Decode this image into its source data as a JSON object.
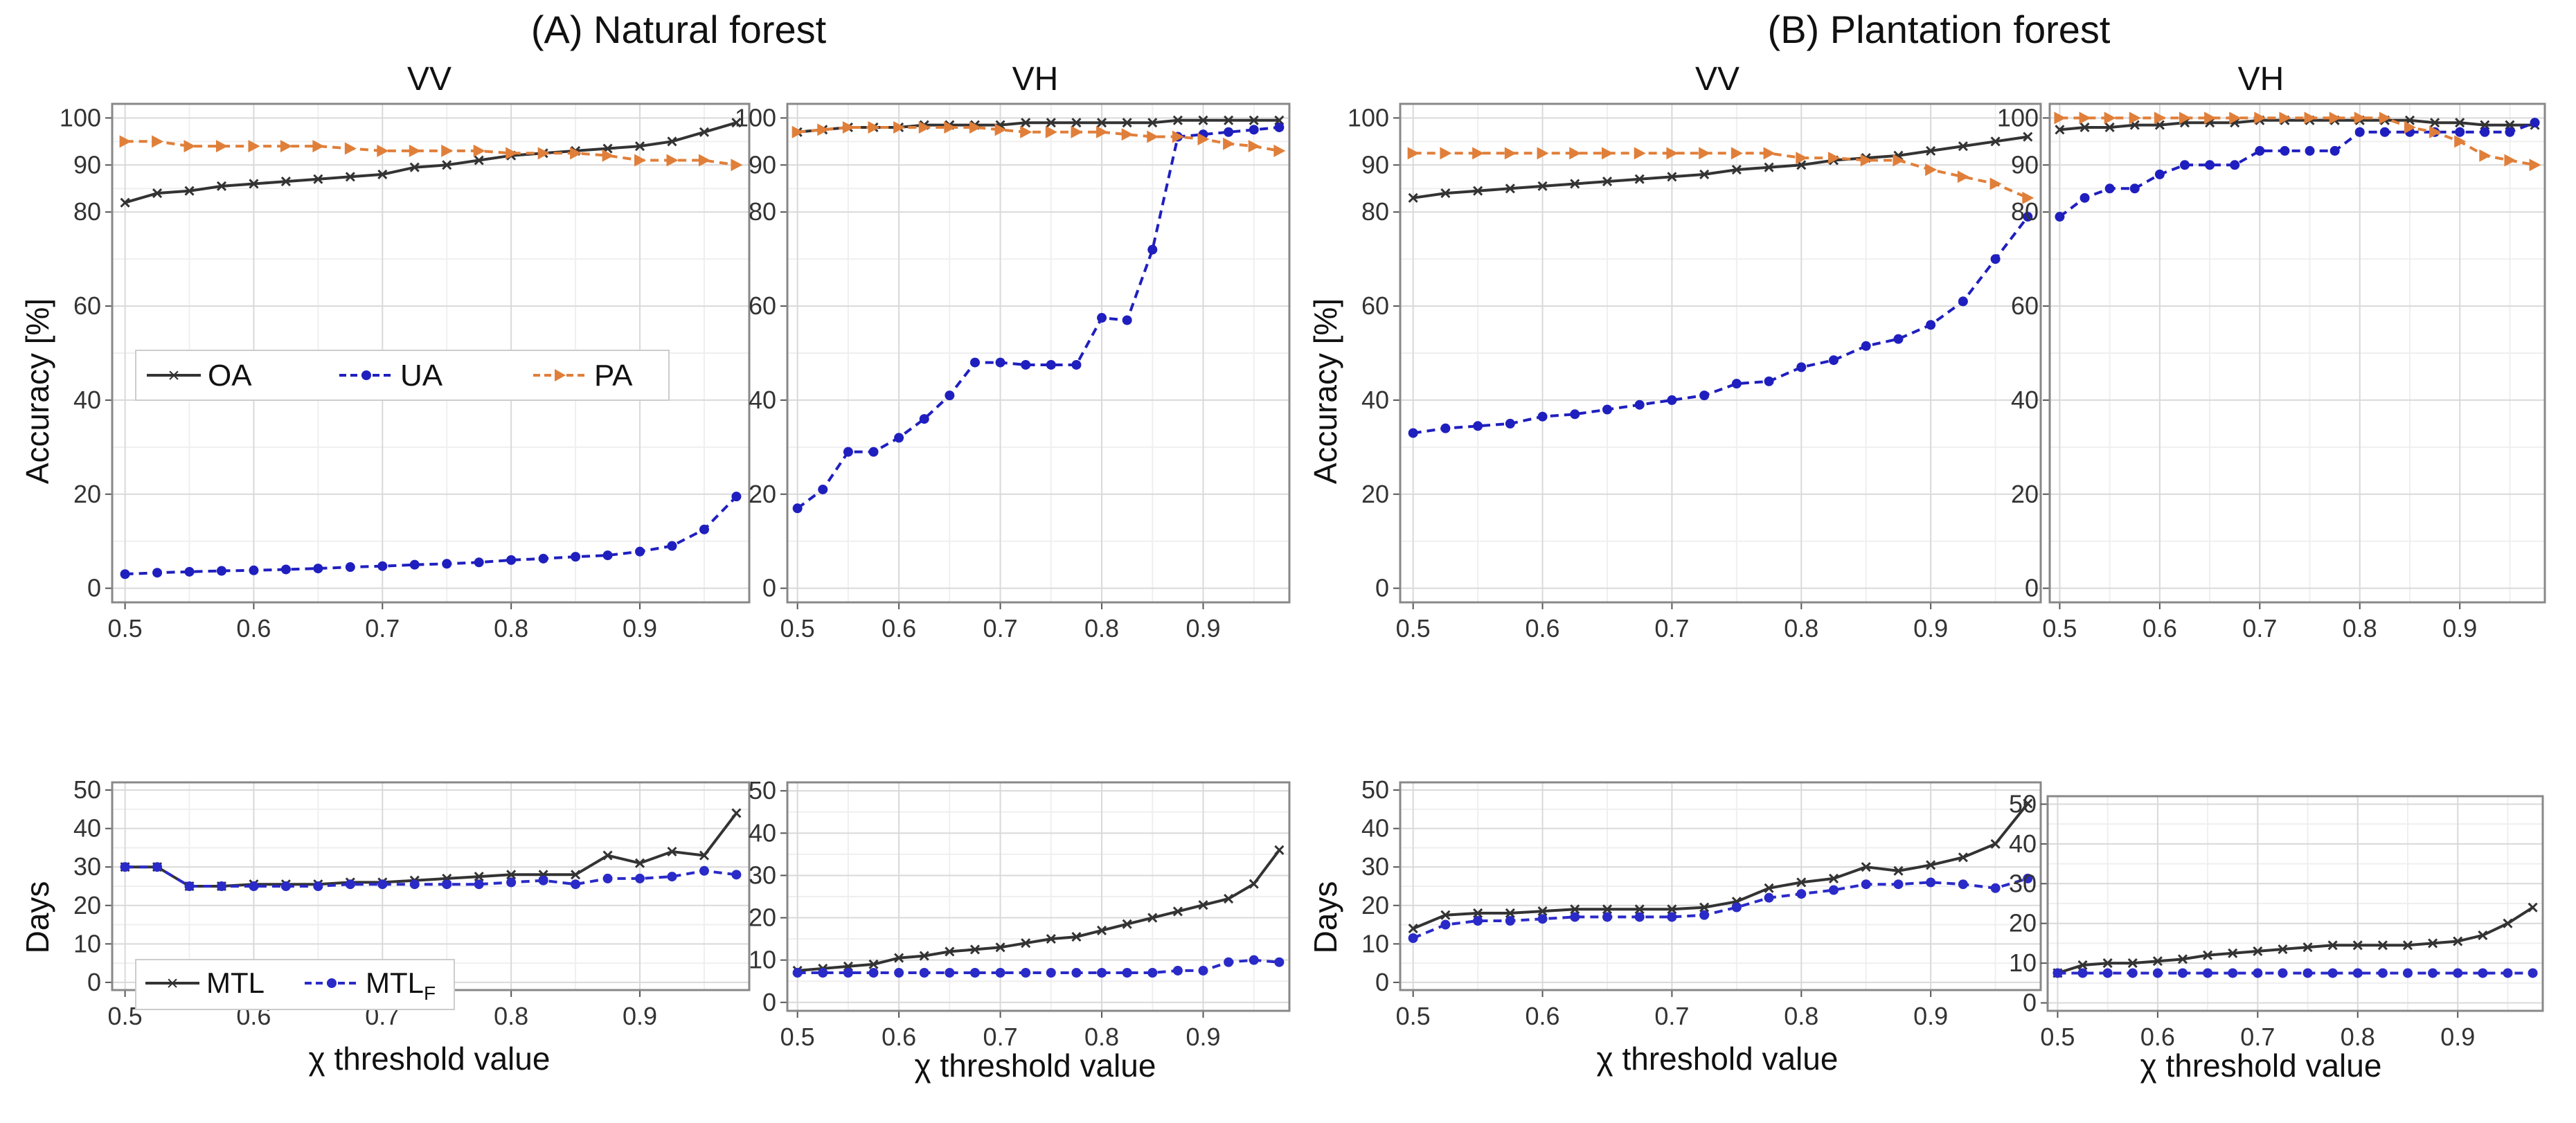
{
  "figure": {
    "group_a_title": "(A) Natural forest",
    "group_b_title": "(B) Plantation forest",
    "accuracy_ylabel": "Accuracy [%]",
    "days_ylabel": "Days",
    "xlabel": "χ threshold value",
    "legend_top": [
      "OA",
      "UA",
      "PA"
    ],
    "legend_bottom": [
      "MTL",
      "MTL",
      "F"
    ]
  },
  "colors": {
    "OA": "#333333",
    "UA": "#1f1fbf",
    "PA": "#e07f3a",
    "MTL": "#333333",
    "MTLF": "#2a2ac8",
    "grid_major": "#d9d9d9",
    "grid_minor": "#efefef",
    "frame": "#888888"
  },
  "chart_data": [
    {
      "id": "A_VV_acc",
      "type": "line",
      "title": "VV",
      "xlabel": "",
      "ylabel": "Accuracy [%]",
      "xlim": [
        0.49,
        0.985
      ],
      "ylim": [
        -3,
        103
      ],
      "x_ticks": [
        0.5,
        0.6,
        0.7,
        0.8,
        0.9
      ],
      "y_ticks": [
        0,
        20,
        40,
        60,
        80,
        90,
        100
      ],
      "legend": "inside-lower-left",
      "x": [
        0.5,
        0.525,
        0.55,
        0.575,
        0.6,
        0.625,
        0.65,
        0.675,
        0.7,
        0.725,
        0.75,
        0.775,
        0.8,
        0.825,
        0.85,
        0.875,
        0.9,
        0.925,
        0.95,
        0.975
      ],
      "series": [
        {
          "name": "OA",
          "values": [
            82,
            84,
            84.5,
            85.5,
            86,
            86.5,
            87,
            87.5,
            88,
            89.5,
            90,
            91,
            92,
            92.5,
            93,
            93.5,
            94,
            95,
            97,
            99
          ]
        },
        {
          "name": "UA",
          "values": [
            3,
            3.3,
            3.5,
            3.7,
            3.8,
            4,
            4.2,
            4.5,
            4.7,
            5,
            5.2,
            5.5,
            6,
            6.3,
            6.7,
            7,
            7.8,
            9,
            12.5,
            19.5
          ]
        },
        {
          "name": "PA",
          "values": [
            95,
            95,
            94,
            94,
            94,
            94,
            94,
            93.5,
            93,
            93,
            93,
            93,
            92.5,
            92.5,
            92.5,
            92,
            91,
            91,
            91,
            90
          ]
        }
      ]
    },
    {
      "id": "A_VH_acc",
      "type": "line",
      "title": "VH",
      "xlabel": "",
      "ylabel": "",
      "xlim": [
        0.49,
        0.985
      ],
      "ylim": [
        -3,
        103
      ],
      "x_ticks": [
        0.5,
        0.6,
        0.7,
        0.8,
        0.9
      ],
      "y_ticks": [
        0,
        20,
        40,
        60,
        80,
        90,
        100
      ],
      "x": [
        0.5,
        0.525,
        0.55,
        0.575,
        0.6,
        0.625,
        0.65,
        0.675,
        0.7,
        0.725,
        0.75,
        0.775,
        0.8,
        0.825,
        0.85,
        0.875,
        0.9,
        0.925,
        0.95,
        0.975
      ],
      "series": [
        {
          "name": "OA",
          "values": [
            97,
            97.5,
            98,
            98,
            98,
            98.5,
            98.5,
            98.5,
            98.5,
            99,
            99,
            99,
            99,
            99,
            99,
            99.5,
            99.5,
            99.5,
            99.5,
            99.5
          ]
        },
        {
          "name": "UA",
          "values": [
            17,
            21,
            29,
            29,
            32,
            36,
            41,
            48,
            48,
            47.5,
            47.5,
            47.5,
            57.5,
            57,
            72,
            96,
            96.5,
            97,
            97.5,
            98
          ]
        },
        {
          "name": "PA",
          "values": [
            97,
            97.5,
            98,
            98,
            98,
            98,
            98,
            98,
            97.5,
            97,
            97,
            97,
            97,
            96.5,
            96,
            96,
            95.5,
            94.5,
            94,
            93
          ]
        }
      ]
    },
    {
      "id": "B_VV_acc",
      "type": "line",
      "title": "VV",
      "xlabel": "",
      "ylabel": "Accuracy [%]",
      "xlim": [
        0.49,
        0.985
      ],
      "ylim": [
        -3,
        103
      ],
      "x_ticks": [
        0.5,
        0.6,
        0.7,
        0.8,
        0.9
      ],
      "y_ticks": [
        0,
        20,
        40,
        60,
        80,
        90,
        100
      ],
      "x": [
        0.5,
        0.525,
        0.55,
        0.575,
        0.6,
        0.625,
        0.65,
        0.675,
        0.7,
        0.725,
        0.75,
        0.775,
        0.8,
        0.825,
        0.85,
        0.875,
        0.9,
        0.925,
        0.95,
        0.975
      ],
      "series": [
        {
          "name": "OA",
          "values": [
            83,
            84,
            84.5,
            85,
            85.5,
            86,
            86.5,
            87,
            87.5,
            88,
            89,
            89.5,
            90,
            91,
            91.5,
            92,
            93,
            94,
            95,
            96
          ]
        },
        {
          "name": "UA",
          "values": [
            33,
            34,
            34.5,
            35,
            36.5,
            37,
            38,
            39,
            40,
            41,
            43.5,
            44,
            47,
            48.5,
            51.5,
            53,
            56,
            61,
            70,
            79
          ]
        },
        {
          "name": "PA",
          "values": [
            92.5,
            92.5,
            92.5,
            92.5,
            92.5,
            92.5,
            92.5,
            92.5,
            92.5,
            92.5,
            92.5,
            92.5,
            91.5,
            91.5,
            91,
            91,
            89,
            87.5,
            86,
            83
          ]
        }
      ]
    },
    {
      "id": "B_VH_acc",
      "type": "line",
      "title": "VH",
      "xlabel": "",
      "ylabel": "",
      "xlim": [
        0.49,
        0.985
      ],
      "ylim": [
        -3,
        103
      ],
      "x_ticks": [
        0.5,
        0.6,
        0.7,
        0.8,
        0.9
      ],
      "y_ticks": [
        0,
        20,
        40,
        60,
        80,
        90,
        100
      ],
      "x": [
        0.5,
        0.525,
        0.55,
        0.575,
        0.6,
        0.625,
        0.65,
        0.675,
        0.7,
        0.725,
        0.75,
        0.775,
        0.8,
        0.825,
        0.85,
        0.875,
        0.9,
        0.925,
        0.95,
        0.975
      ],
      "series": [
        {
          "name": "OA",
          "values": [
            97.5,
            98,
            98,
            98.5,
            98.5,
            99,
            99,
            99,
            99.5,
            99.5,
            99.5,
            99.5,
            99.5,
            99.5,
            99.5,
            99,
            99,
            98.5,
            98.5,
            98.5
          ]
        },
        {
          "name": "UA",
          "values": [
            79,
            83,
            85,
            85,
            88,
            90,
            90,
            90,
            93,
            93,
            93,
            93,
            97,
            97,
            97,
            97,
            97,
            97,
            97,
            99
          ]
        },
        {
          "name": "PA",
          "values": [
            100,
            100,
            100,
            100,
            100,
            100,
            100,
            100,
            100,
            100,
            100,
            100,
            100,
            100,
            98,
            97,
            95,
            92,
            91,
            90
          ]
        }
      ]
    },
    {
      "id": "A_VV_days",
      "type": "line",
      "title": "",
      "xlabel": "χ threshold value",
      "ylabel": "Days",
      "xlim": [
        0.49,
        0.985
      ],
      "ylim": [
        -2,
        52
      ],
      "x_ticks": [
        0.5,
        0.6,
        0.7,
        0.8,
        0.9
      ],
      "y_ticks": [
        0,
        10,
        20,
        30,
        40,
        50
      ],
      "legend": "inside-lower-left",
      "x": [
        0.5,
        0.525,
        0.55,
        0.575,
        0.6,
        0.625,
        0.65,
        0.675,
        0.7,
        0.725,
        0.75,
        0.775,
        0.8,
        0.825,
        0.85,
        0.875,
        0.9,
        0.925,
        0.95,
        0.975
      ],
      "series": [
        {
          "name": "MTL",
          "values": [
            30,
            30,
            25,
            25,
            25.5,
            25.5,
            25.5,
            26,
            26,
            26.5,
            27,
            27.5,
            28,
            28,
            28,
            33,
            31,
            34,
            33,
            44
          ]
        },
        {
          "name": "MTLF",
          "values": [
            30,
            30,
            25,
            25,
            25,
            25,
            25,
            25.5,
            25.5,
            25.5,
            25.5,
            25.5,
            26,
            26.5,
            25.5,
            27,
            27,
            27.5,
            29,
            28
          ]
        }
      ]
    },
    {
      "id": "A_VH_days",
      "type": "line",
      "title": "",
      "xlabel": "χ threshold value",
      "ylabel": "",
      "xlim": [
        0.49,
        0.985
      ],
      "ylim": [
        -2,
        52
      ],
      "x_ticks": [
        0.5,
        0.6,
        0.7,
        0.8,
        0.9
      ],
      "y_ticks": [
        0,
        10,
        20,
        30,
        40,
        50
      ],
      "x": [
        0.5,
        0.525,
        0.55,
        0.575,
        0.6,
        0.625,
        0.65,
        0.675,
        0.7,
        0.725,
        0.75,
        0.775,
        0.8,
        0.825,
        0.85,
        0.875,
        0.9,
        0.925,
        0.95,
        0.975
      ],
      "series": [
        {
          "name": "MTL",
          "values": [
            7.5,
            8,
            8.5,
            9,
            10.5,
            11,
            12,
            12.5,
            13,
            14,
            15,
            15.5,
            17,
            18.5,
            20,
            21.5,
            23,
            24.5,
            28,
            36
          ]
        },
        {
          "name": "MTLF",
          "values": [
            7,
            7,
            7,
            7,
            7,
            7,
            7,
            7,
            7,
            7,
            7,
            7,
            7,
            7,
            7,
            7.5,
            7.5,
            9.5,
            10,
            9.5
          ]
        }
      ]
    },
    {
      "id": "B_VV_days",
      "type": "line",
      "title": "",
      "xlabel": "χ threshold value",
      "ylabel": "Days",
      "xlim": [
        0.49,
        0.985
      ],
      "ylim": [
        -2,
        52
      ],
      "x_ticks": [
        0.5,
        0.6,
        0.7,
        0.8,
        0.9
      ],
      "y_ticks": [
        0,
        10,
        20,
        30,
        40,
        50
      ],
      "x": [
        0.5,
        0.525,
        0.55,
        0.575,
        0.6,
        0.625,
        0.65,
        0.675,
        0.7,
        0.725,
        0.75,
        0.775,
        0.8,
        0.825,
        0.85,
        0.875,
        0.9,
        0.925,
        0.95,
        0.975
      ],
      "series": [
        {
          "name": "MTL",
          "values": [
            14,
            17.5,
            18,
            18,
            18.5,
            19,
            19,
            19,
            19,
            19.5,
            21,
            24.5,
            26,
            27,
            30,
            29,
            30.5,
            32.5,
            36,
            46.5
          ]
        },
        {
          "name": "MTLF",
          "values": [
            11.5,
            15,
            16,
            16,
            16.5,
            17,
            17,
            17,
            17,
            17.5,
            19.5,
            22,
            23,
            24,
            25.5,
            25.5,
            26,
            25.5,
            24.5,
            27
          ]
        }
      ]
    },
    {
      "id": "B_VH_days",
      "type": "line",
      "title": "",
      "xlabel": "χ threshold value",
      "ylabel": "",
      "xlim": [
        0.49,
        0.985
      ],
      "ylim": [
        -2,
        52
      ],
      "x_ticks": [
        0.5,
        0.6,
        0.7,
        0.8,
        0.9
      ],
      "y_ticks": [
        0,
        10,
        20,
        30,
        40,
        50
      ],
      "x": [
        0.5,
        0.525,
        0.55,
        0.575,
        0.6,
        0.625,
        0.65,
        0.675,
        0.7,
        0.725,
        0.75,
        0.775,
        0.8,
        0.825,
        0.85,
        0.875,
        0.9,
        0.925,
        0.95,
        0.975
      ],
      "series": [
        {
          "name": "MTL",
          "values": [
            7.5,
            9.5,
            10,
            10,
            10.5,
            11,
            12,
            12.5,
            13,
            13.5,
            14,
            14.5,
            14.5,
            14.5,
            14.5,
            15,
            15.5,
            17,
            20,
            24
          ]
        },
        {
          "name": "MTLF",
          "values": [
            7.5,
            7.5,
            7.5,
            7.5,
            7.5,
            7.5,
            7.5,
            7.5,
            7.5,
            7.5,
            7.5,
            7.5,
            7.5,
            7.5,
            7.5,
            7.5,
            7.5,
            7.5,
            7.5,
            7.5
          ]
        }
      ]
    }
  ]
}
